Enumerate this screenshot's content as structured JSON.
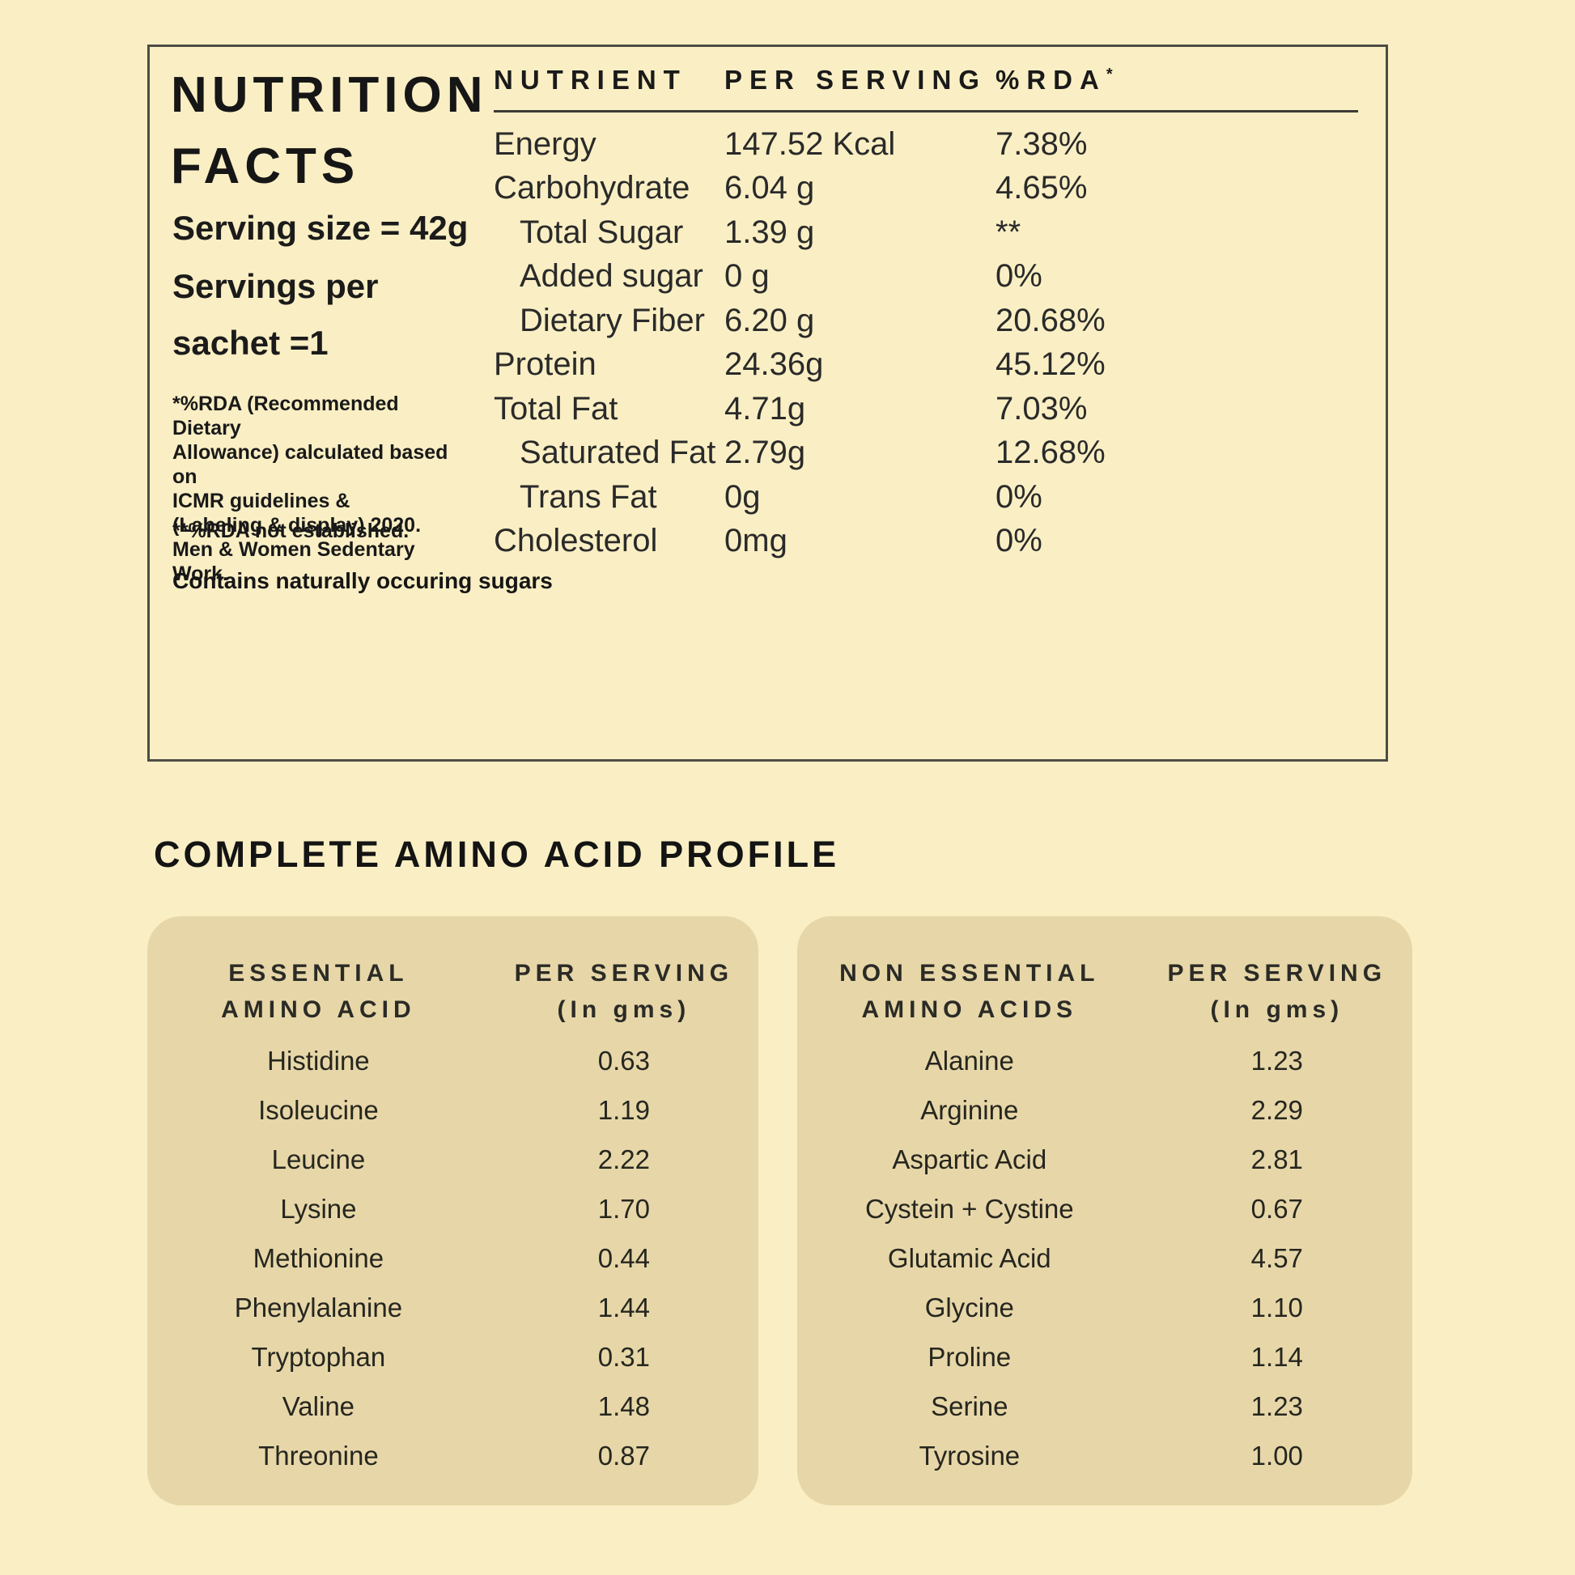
{
  "colors": {
    "page_bg": "#FAEFC4",
    "panel_border": "#4D4C44",
    "amino_box_bg": "#E7D7A8",
    "text": "#1F1F1F"
  },
  "nutrition": {
    "title_line1": "NUTRITION",
    "title_line2": "FACTS",
    "serving_size": "Serving size = 42g",
    "servings_per_line1": "Servings per",
    "servings_per_line2": "sachet =1",
    "footnote_lines": [
      "*%RDA (Recommended Dietary",
      "Allowance) calculated based on",
      "ICMR guidelines &",
      "(Labeling & display) 2020.",
      "Men & Women Sedentary Work."
    ],
    "footnote2": "**%RDA not established.",
    "contains_note": "Contains naturally occuring sugars",
    "table": {
      "col1": "NUTRIENT",
      "col2": "PER SERVING",
      "col3": "%RDA",
      "col3_mark": "*",
      "rows": [
        {
          "n": "Energy",
          "v": "147.52 Kcal",
          "r": "7.38%"
        },
        {
          "n": "Carbohydrate",
          "v": "6.04 g",
          "r": "4.65%"
        },
        {
          "n": "Total Sugar",
          "v": "1.39 g",
          "r": "**"
        },
        {
          "n": "Added sugar",
          "v": "0 g",
          "r": "0%"
        },
        {
          "n": "Dietary Fiber",
          "v": "6.20 g",
          "r": "20.68%"
        },
        {
          "n": "Protein",
          "v": "24.36g",
          "r": "45.12%"
        },
        {
          "n": "Total Fat",
          "v": "4.71g",
          "r": "7.03%"
        },
        {
          "n": "Saturated Fat",
          "v": "2.79g",
          "r": "12.68%"
        },
        {
          "n": "Trans Fat",
          "v": "0g",
          "r": "0%"
        },
        {
          "n": "Cholesterol",
          "v": "0mg",
          "r": "0%"
        }
      ]
    }
  },
  "amino": {
    "heading": "COMPLETE AMINO ACID PROFILE",
    "essential": {
      "h1a": "ESSENTIAL",
      "h1b": "AMINO ACID",
      "h2a": "PER SERVING",
      "h2b": "(In gms)",
      "rows": [
        {
          "name": "Histidine",
          "value": "0.63"
        },
        {
          "name": "Isoleucine",
          "value": "1.19"
        },
        {
          "name": "Leucine",
          "value": "2.22"
        },
        {
          "name": "Lysine",
          "value": "1.70"
        },
        {
          "name": "Methionine",
          "value": "0.44"
        },
        {
          "name": "Phenylalanine",
          "value": "1.44"
        },
        {
          "name": "Tryptophan",
          "value": "0.31"
        },
        {
          "name": "Valine",
          "value": "1.48"
        },
        {
          "name": "Threonine",
          "value": "0.87"
        }
      ]
    },
    "non_essential": {
      "h1a": "NON ESSENTIAL",
      "h1b": "AMINO ACIDS",
      "h2a": "PER SERVING",
      "h2b": "(In gms)",
      "rows": [
        {
          "name": "Alanine",
          "value": "1.23"
        },
        {
          "name": "Arginine",
          "value": "2.29"
        },
        {
          "name": "Aspartic Acid",
          "value": "2.81"
        },
        {
          "name": "Cystein + Cystine",
          "value": "0.67"
        },
        {
          "name": "Glutamic Acid",
          "value": "4.57"
        },
        {
          "name": "Glycine",
          "value": "1.10"
        },
        {
          "name": "Proline",
          "value": "1.14"
        },
        {
          "name": "Serine",
          "value": "1.23"
        },
        {
          "name": "Tyrosine",
          "value": "1.00"
        }
      ]
    }
  }
}
